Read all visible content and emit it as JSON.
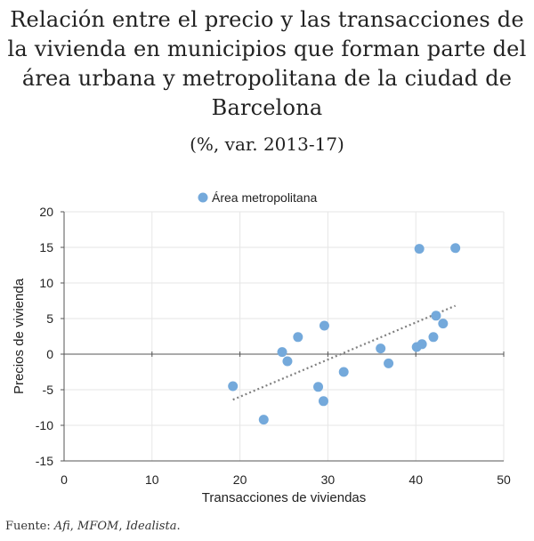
{
  "title": "Relación entre el precio y las transacciones de la vivienda en municipios que forman parte del área urbana y metropolitana de la ciudad de Barcelona",
  "subtitle": "(%, var. 2013-17)",
  "source": {
    "label": "Fuente:",
    "afi": "Afi",
    "mfom": "MFOM",
    "idealista": "Idealista"
  },
  "chart_data": {
    "type": "scatter",
    "xlabel": "Transacciones de viviendas",
    "ylabel": "Precios de vivienda",
    "xlim": [
      0,
      50
    ],
    "ylim": [
      -15,
      20
    ],
    "xticks": [
      0,
      10,
      20,
      30,
      40,
      50
    ],
    "yticks": [
      20,
      15,
      10,
      5,
      0,
      -5,
      -10,
      -15
    ],
    "grid": true,
    "legend": "top-center",
    "colors": {
      "points": "#74a9db",
      "trend": "#808080",
      "grid": "#e6e6e6"
    },
    "series": [
      {
        "name": "Área metropolitana",
        "points": [
          [
            19.2,
            -4.5
          ],
          [
            22.7,
            -9.2
          ],
          [
            24.8,
            0.3
          ],
          [
            25.4,
            -1.0
          ],
          [
            26.6,
            2.4
          ],
          [
            28.9,
            -4.6
          ],
          [
            29.5,
            -6.6
          ],
          [
            29.6,
            4.0
          ],
          [
            31.8,
            -2.5
          ],
          [
            36.0,
            0.8
          ],
          [
            36.9,
            -1.3
          ],
          [
            40.1,
            1.0
          ],
          [
            40.7,
            1.4
          ],
          [
            40.4,
            14.8
          ],
          [
            42.0,
            2.4
          ],
          [
            42.3,
            5.4
          ],
          [
            43.1,
            4.3
          ],
          [
            44.5,
            14.9
          ]
        ]
      }
    ],
    "trendline": {
      "style": "dotted",
      "from": [
        19.2,
        -6.4
      ],
      "to": [
        44.5,
        6.8
      ]
    }
  }
}
